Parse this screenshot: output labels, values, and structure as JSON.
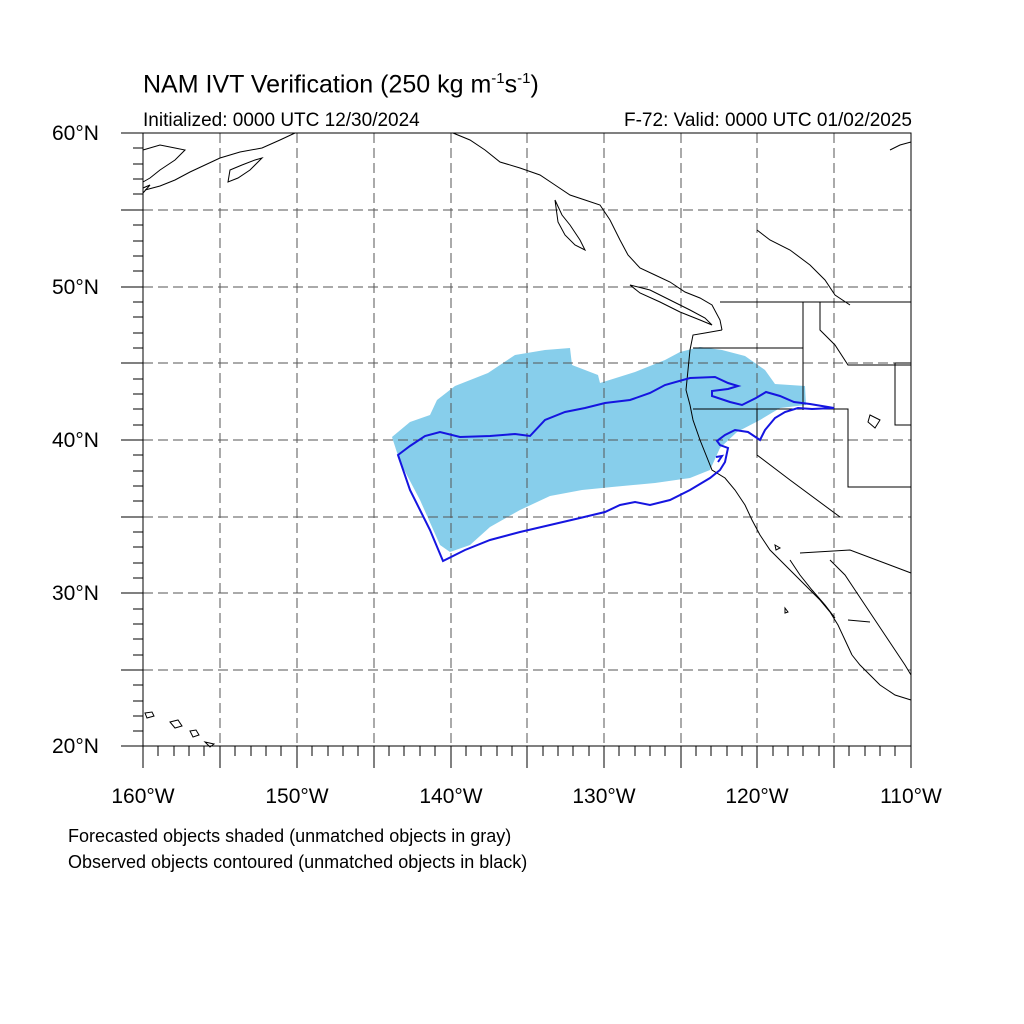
{
  "title": {
    "main": "NAM IVT Verification (250 kg m",
    "exp1": "-1",
    "mid": "s",
    "exp2": "-1",
    "end": ")"
  },
  "subtitle": {
    "initialized": "Initialized: 0000 UTC 12/30/2024",
    "valid": "F-72: Valid: 0000 UTC 01/02/2025"
  },
  "lat_labels": [
    "60°N",
    "50°N",
    "40°N",
    "30°N",
    "20°N"
  ],
  "lon_labels": [
    "160°W",
    "150°W",
    "140°W",
    "130°W",
    "120°W",
    "110°W"
  ],
  "footnotes": [
    "Forecasted objects shaded (unmatched objects in gray)",
    "Observed objects contoured (unmatched objects in black)"
  ],
  "map": {
    "extent": {
      "lon_min": -160,
      "lon_max": -110,
      "lat_min": 20,
      "lat_max": 60
    },
    "grid_spacing_deg": 5,
    "forecast_fill_color": "#87ceeb",
    "observed_contour_color": "#1515e0"
  }
}
